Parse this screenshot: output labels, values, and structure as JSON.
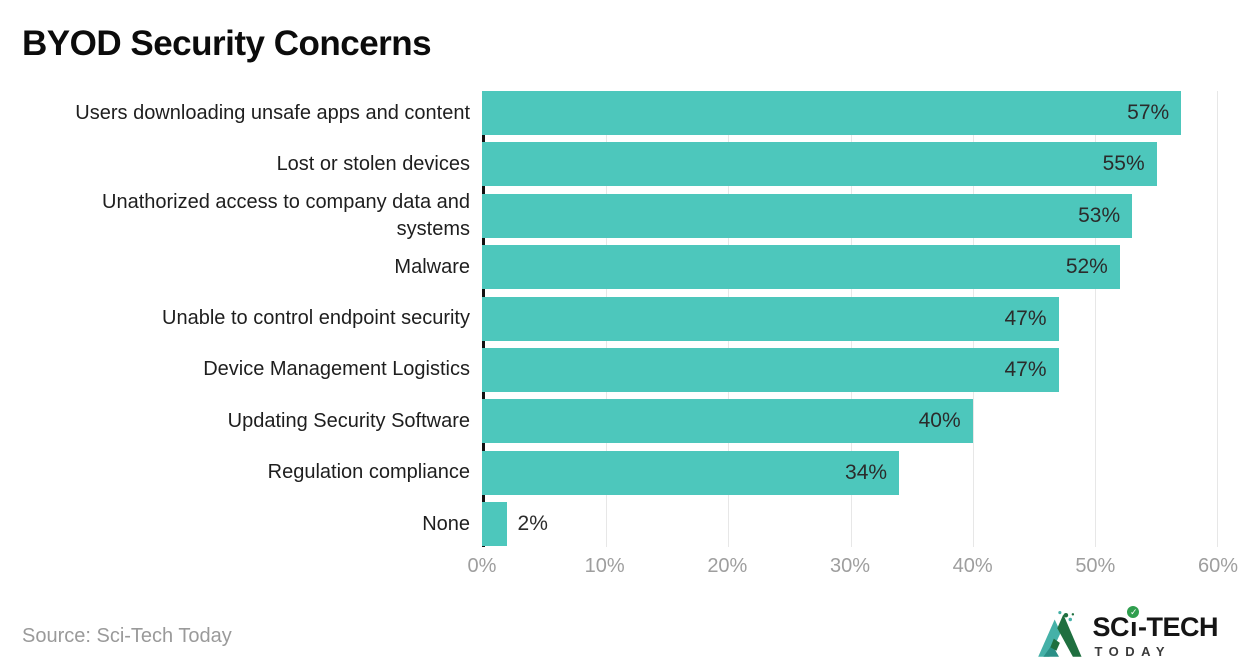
{
  "title": "BYOD Security Concerns",
  "footer": {
    "source": "Source: Sci-Tech Today"
  },
  "logo": {
    "name_part1": "SC",
    "name_part2": "ı",
    "name_part3": "-TECH",
    "tagline": "TODAY",
    "check_glyph": "✓"
  },
  "colors": {
    "bar": "#4DC7BC",
    "axis_line": "#111111",
    "gridline": "#e7e7e7",
    "value_text": "#2b2b2b",
    "category_text": "#1e1e1e",
    "tick_text": "#9e9e9e",
    "source_text": "#9a9a9a",
    "logo_teal": "#45b1a8",
    "logo_green": "#1f6f3f",
    "logo_check_bg": "#2f9e4e"
  },
  "chart_data": {
    "type": "bar",
    "orientation": "horizontal",
    "title": "BYOD Security Concerns",
    "categories": [
      "Users downloading unsafe apps and content",
      "Lost or stolen devices",
      "Unathorized access to company data and systems",
      "Malware",
      "Unable to control endpoint security",
      "Device Management Logistics",
      "Updating Security Software",
      "Regulation compliance",
      "None"
    ],
    "values": [
      57,
      55,
      53,
      52,
      47,
      47,
      40,
      34,
      2
    ],
    "value_labels": [
      "57%",
      "55%",
      "53%",
      "52%",
      "47%",
      "47%",
      "40%",
      "34%",
      "2%"
    ],
    "xlim": [
      0,
      60
    ],
    "xticks": [
      "0%",
      "10%",
      "20%",
      "30%",
      "40%",
      "50%",
      "60%"
    ],
    "xtick_values": [
      0,
      10,
      20,
      30,
      40,
      50,
      60
    ],
    "grid": "vertical gridlines every 10%",
    "legend": "none",
    "bar_color": "#4DC7BC",
    "value_label_position": "inside-end (outside-end when bar too short)",
    "source": "Sci-Tech Today"
  }
}
